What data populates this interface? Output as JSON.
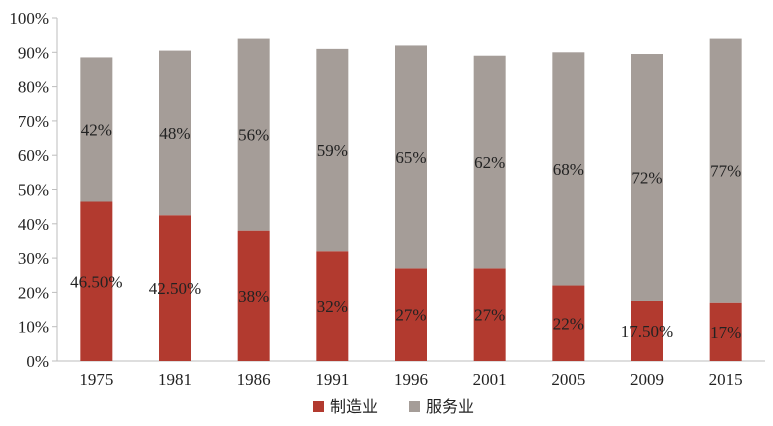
{
  "chart_data": {
    "type": "bar",
    "stacked": true,
    "categories": [
      "1975",
      "1981",
      "1986",
      "1991",
      "1996",
      "2001",
      "2005",
      "2009",
      "2015"
    ],
    "series": [
      {
        "name": "制造业",
        "color": "#b23a2f",
        "values": [
          46.5,
          42.5,
          38,
          32,
          27,
          27,
          22,
          17.5,
          17
        ],
        "labels": [
          "46.50%",
          "42.50%",
          "38%",
          "32%",
          "27%",
          "27%",
          "22%",
          "17.50%",
          "17%"
        ]
      },
      {
        "name": "服务业",
        "color": "#a59d98",
        "values": [
          42,
          48,
          56,
          59,
          65,
          62,
          68,
          72,
          77
        ],
        "labels": [
          "42%",
          "48%",
          "56%",
          "59%",
          "65%",
          "62%",
          "68%",
          "72%",
          "77%"
        ]
      }
    ],
    "ylim": [
      0,
      100
    ],
    "yticks": [
      "0%",
      "10%",
      "20%",
      "30%",
      "40%",
      "50%",
      "60%",
      "70%",
      "80%",
      "90%",
      "100%"
    ],
    "grid": false,
    "legend": "bottom-center"
  }
}
